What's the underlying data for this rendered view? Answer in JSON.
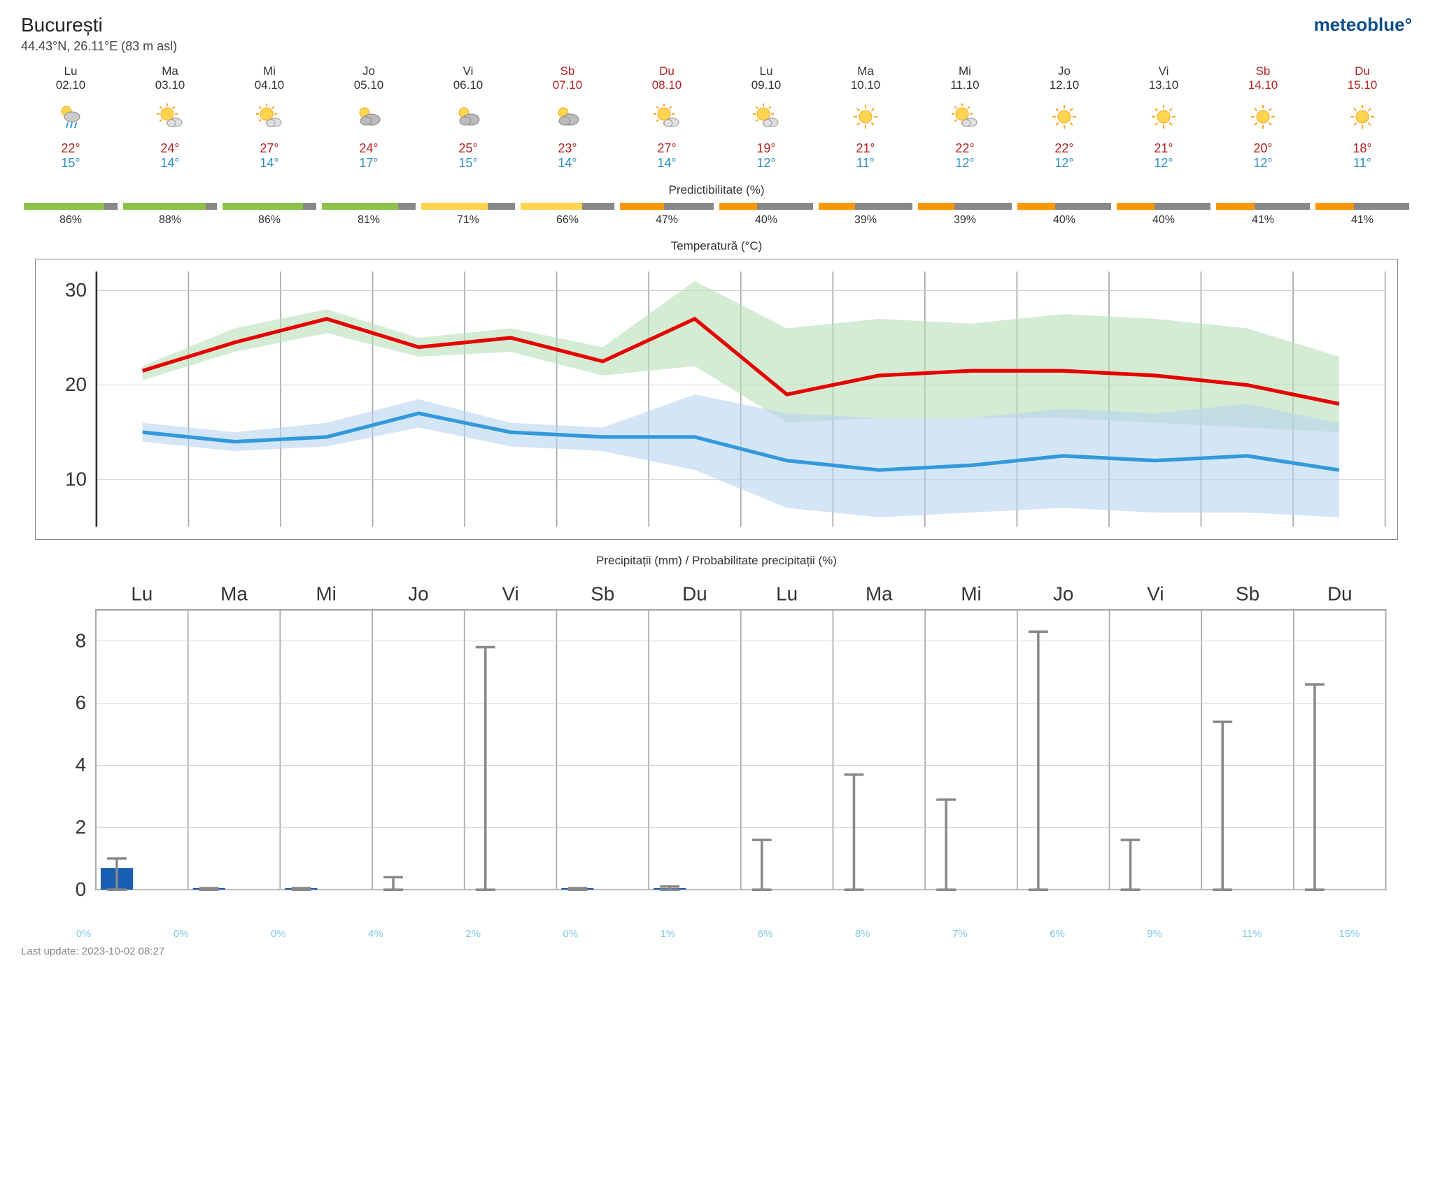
{
  "location": {
    "name": "București",
    "coords": "44.43°N, 26.11°E (83 m asl)"
  },
  "brand": "meteoblue",
  "last_update": "Last update: 2023-10-02 08:27",
  "section_titles": {
    "predictability": "Predictibilitate (%)",
    "temperature": "Temperatură (°C)",
    "precipitation": "Precipitații (mm) / Probabilitate precipitații (%)"
  },
  "colors": {
    "brand": "#0d4f8b",
    "high_temp": "#b22222",
    "low_temp": "#2a8fc4",
    "weekend": "#b22222",
    "precip_prob": "#7fc8e8",
    "temp_high_line": "#e60000",
    "temp_low_line": "#3399dd",
    "temp_high_band": "#b8e0b8",
    "temp_low_band": "#b8d4f0",
    "grid": "#aaaaaa",
    "precip_bar": "#1a5fb4",
    "error_bar": "#888888"
  },
  "days": [
    {
      "dow": "Lu",
      "date": "02.10",
      "weekend": false,
      "icon": "rain-sun",
      "high": "22°",
      "low": "15°",
      "pred": 86,
      "pred_color": "#8bc34a",
      "prob": "0%"
    },
    {
      "dow": "Ma",
      "date": "03.10",
      "weekend": false,
      "icon": "sun-cloud",
      "high": "24°",
      "low": "14°",
      "pred": 88,
      "pred_color": "#8bc34a",
      "prob": "0%"
    },
    {
      "dow": "Mi",
      "date": "04.10",
      "weekend": false,
      "icon": "sun-cloud",
      "high": "27°",
      "low": "14°",
      "pred": 86,
      "pred_color": "#8bc34a",
      "prob": "0%"
    },
    {
      "dow": "Jo",
      "date": "05.10",
      "weekend": false,
      "icon": "cloud-sun",
      "high": "24°",
      "low": "17°",
      "pred": 81,
      "pred_color": "#8bc34a",
      "prob": "4%"
    },
    {
      "dow": "Vi",
      "date": "06.10",
      "weekend": false,
      "icon": "cloud-sun",
      "high": "25°",
      "low": "15°",
      "pred": 71,
      "pred_color": "#ffd54f",
      "prob": "2%"
    },
    {
      "dow": "Sb",
      "date": "07.10",
      "weekend": true,
      "icon": "cloud-sun",
      "high": "23°",
      "low": "14°",
      "pred": 66,
      "pred_color": "#ffd54f",
      "prob": "0%"
    },
    {
      "dow": "Du",
      "date": "08.10",
      "weekend": true,
      "icon": "sun-cloud",
      "high": "27°",
      "low": "14°",
      "pred": 47,
      "pred_color": "#ff9800",
      "prob": "1%"
    },
    {
      "dow": "Lu",
      "date": "09.10",
      "weekend": false,
      "icon": "sun-cloud",
      "high": "19°",
      "low": "12°",
      "pred": 40,
      "pred_color": "#ff9800",
      "prob": "6%"
    },
    {
      "dow": "Ma",
      "date": "10.10",
      "weekend": false,
      "icon": "sun",
      "high": "21°",
      "low": "11°",
      "pred": 39,
      "pred_color": "#ff9800",
      "prob": "8%"
    },
    {
      "dow": "Mi",
      "date": "11.10",
      "weekend": false,
      "icon": "sun-cloud",
      "high": "22°",
      "low": "12°",
      "pred": 39,
      "pred_color": "#ff9800",
      "prob": "7%"
    },
    {
      "dow": "Jo",
      "date": "12.10",
      "weekend": false,
      "icon": "sun",
      "high": "22°",
      "low": "12°",
      "pred": 40,
      "pred_color": "#ff9800",
      "prob": "6%"
    },
    {
      "dow": "Vi",
      "date": "13.10",
      "weekend": false,
      "icon": "sun",
      "high": "21°",
      "low": "12°",
      "pred": 40,
      "pred_color": "#ff9800",
      "prob": "9%"
    },
    {
      "dow": "Sb",
      "date": "14.10",
      "weekend": true,
      "icon": "sun",
      "high": "20°",
      "low": "12°",
      "pred": 41,
      "pred_color": "#ff9800",
      "prob": "11%"
    },
    {
      "dow": "Du",
      "date": "15.10",
      "weekend": true,
      "icon": "sun",
      "high": "18°",
      "low": "11°",
      "pred": 41,
      "pred_color": "#ff9800",
      "prob": "15%"
    }
  ],
  "temp_chart": {
    "ylim": [
      5,
      32
    ],
    "yticks": [
      10,
      20,
      30
    ],
    "high_line": [
      21.5,
      24.5,
      27,
      24,
      25,
      22.5,
      27,
      19,
      21,
      21.5,
      21.5,
      21,
      20,
      18
    ],
    "low_line": [
      15,
      14,
      14.5,
      17,
      15,
      14.5,
      14.5,
      12,
      11,
      11.5,
      12.5,
      12,
      12.5,
      11
    ],
    "high_band_upper": [
      22,
      26,
      28,
      25,
      26,
      24,
      31,
      26,
      27,
      26.5,
      27.5,
      27,
      26,
      23
    ],
    "high_band_lower": [
      20.5,
      23.5,
      25.5,
      23,
      23.5,
      21,
      22,
      16,
      16.5,
      16.5,
      16.5,
      16,
      15.5,
      15
    ],
    "low_band_upper": [
      16,
      15,
      16,
      18.5,
      16,
      15.5,
      19,
      17,
      16.5,
      16.5,
      17.5,
      17,
      18,
      16
    ],
    "low_band_lower": [
      14,
      13,
      13.5,
      15.5,
      13.5,
      13,
      11,
      7,
      6,
      6.5,
      7,
      6.5,
      6.5,
      6
    ]
  },
  "precip_chart": {
    "ylim": [
      0,
      9
    ],
    "yticks": [
      0,
      2,
      4,
      6,
      8
    ],
    "bars": [
      0.7,
      0.05,
      0.05,
      0,
      0,
      0.05,
      0.05,
      0,
      0,
      0,
      0,
      0,
      0,
      0
    ],
    "error_low": [
      0,
      0,
      0,
      0,
      0,
      0,
      0,
      0,
      0,
      0,
      0,
      0,
      0,
      0
    ],
    "error_high": [
      1.0,
      0.05,
      0.05,
      0.4,
      7.8,
      0.05,
      0.1,
      1.6,
      3.7,
      2.9,
      8.3,
      1.6,
      5.4,
      6.6
    ],
    "day_labels": [
      "Lu",
      "Ma",
      "Mi",
      "Jo",
      "Vi",
      "Sb",
      "Du",
      "Lu",
      "Ma",
      "Mi",
      "Jo",
      "Vi",
      "Sb",
      "Du"
    ]
  }
}
